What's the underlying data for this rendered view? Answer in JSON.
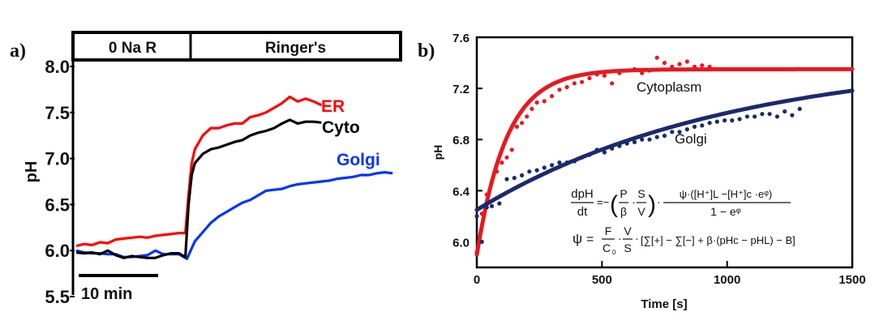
{
  "chart_data": [
    {
      "panel": "a)",
      "type": "line",
      "title": "",
      "xlabel": "",
      "ylabel": "pH",
      "ylim": [
        5.5,
        8.0
      ],
      "yticks": [
        "8.0",
        "7.5",
        "7.0",
        "6.5",
        "6.0",
        "5.5"
      ],
      "ytick_values": [
        8.0,
        7.5,
        7.0,
        6.5,
        6.0,
        5.5
      ],
      "xlim_min": [
        0,
        41
      ],
      "scale_bar_label": "10 min",
      "scale_bar_minutes": 10,
      "conditions": [
        {
          "label": "0 Na R",
          "start_min": 0,
          "end_min": 14
        },
        {
          "label": "Ringer's",
          "start_min": 14,
          "end_min": 41
        }
      ],
      "series": [
        {
          "name": "ER",
          "color": "#ff0000",
          "x": [
            0,
            1,
            2,
            3,
            4,
            5,
            6,
            7,
            8,
            9,
            10,
            11,
            12,
            13,
            13.8,
            14.2,
            14.6,
            15,
            16,
            17,
            18,
            19,
            20,
            21,
            22,
            23,
            24,
            25,
            26,
            27,
            28,
            29,
            30,
            31
          ],
          "y": [
            6.05,
            6.07,
            6.06,
            6.09,
            6.08,
            6.12,
            6.13,
            6.14,
            6.15,
            6.14,
            6.16,
            6.17,
            6.18,
            6.19,
            6.19,
            6.6,
            6.95,
            7.1,
            7.25,
            7.33,
            7.33,
            7.36,
            7.38,
            7.38,
            7.45,
            7.47,
            7.5,
            7.55,
            7.6,
            7.67,
            7.62,
            7.65,
            7.62,
            7.58
          ]
        },
        {
          "name": "Cyto",
          "color": "#000000",
          "x": [
            0,
            1,
            2,
            3,
            4,
            5,
            6,
            7,
            8,
            9,
            10,
            11,
            12,
            13,
            13.8,
            14.2,
            14.6,
            15,
            16,
            17,
            18,
            19,
            20,
            21,
            22,
            23,
            24,
            25,
            26,
            27,
            28,
            29,
            30,
            31
          ],
          "y": [
            5.98,
            5.97,
            5.98,
            5.96,
            6.0,
            5.95,
            5.92,
            5.94,
            5.93,
            5.92,
            5.92,
            5.95,
            5.97,
            5.97,
            5.93,
            6.5,
            6.82,
            6.95,
            7.05,
            7.1,
            7.12,
            7.15,
            7.18,
            7.2,
            7.25,
            7.28,
            7.3,
            7.33,
            7.38,
            7.42,
            7.38,
            7.4,
            7.4,
            7.39
          ]
        },
        {
          "name": "Golgi",
          "color": "#0033ff",
          "x": [
            0,
            1,
            2,
            3,
            4,
            5,
            6,
            7,
            8,
            9,
            10,
            11,
            12,
            13,
            14,
            15,
            16,
            17,
            18,
            19,
            20,
            21,
            22,
            23,
            24,
            25,
            26,
            27,
            28,
            29,
            30,
            31,
            32,
            33,
            34,
            35,
            36,
            37,
            38,
            39,
            40
          ],
          "y": [
            6.0,
            5.98,
            5.97,
            5.97,
            5.96,
            5.96,
            5.93,
            5.93,
            5.94,
            5.95,
            6.0,
            5.96,
            5.96,
            5.96,
            5.91,
            6.1,
            6.2,
            6.3,
            6.37,
            6.42,
            6.47,
            6.52,
            6.55,
            6.6,
            6.65,
            6.66,
            6.67,
            6.7,
            6.72,
            6.73,
            6.74,
            6.75,
            6.76,
            6.78,
            6.79,
            6.8,
            6.82,
            6.82,
            6.84,
            6.85,
            6.84
          ]
        }
      ],
      "legend": [
        "ER",
        "Cyto",
        "Golgi"
      ],
      "legend_placement": "right, inline labels"
    },
    {
      "panel": "b)",
      "type": "scatter",
      "title": "",
      "xlabel": "Time [s]",
      "ylabel": "pH",
      "xlim": [
        0,
        1500
      ],
      "ylim": [
        5.8,
        7.6
      ],
      "xticks": [
        "0",
        "500",
        "1000",
        "1500"
      ],
      "xtick_values": [
        0,
        500,
        1000,
        1500
      ],
      "yticks": [
        "7.6",
        "7.2",
        "6.8",
        "6.4",
        "6.0"
      ],
      "ytick_values": [
        7.6,
        7.2,
        6.8,
        6.4,
        6.0
      ],
      "series": [
        {
          "name": "Cytoplasm",
          "color": "#e8191e",
          "points_x": [
            0,
            20,
            40,
            60,
            80,
            100,
            120,
            140,
            160,
            180,
            200,
            220,
            240,
            270,
            300,
            330,
            360,
            390,
            420,
            450,
            480,
            510,
            540,
            570,
            600,
            630,
            660,
            690,
            720,
            750,
            780,
            810,
            840,
            870,
            900,
            930
          ],
          "points_y": [
            5.92,
            6.22,
            6.37,
            6.47,
            6.55,
            6.62,
            6.66,
            6.72,
            6.9,
            6.93,
            6.98,
            7.04,
            7.09,
            7.1,
            7.14,
            7.19,
            7.21,
            7.24,
            7.25,
            7.28,
            7.31,
            7.3,
            7.24,
            7.32,
            7.34,
            7.35,
            7.32,
            7.34,
            7.44,
            7.4,
            7.37,
            7.39,
            7.41,
            7.37,
            7.38,
            7.37
          ],
          "fit": {
            "model": "exponential",
            "y0": 5.9,
            "yinf": 7.35,
            "tau_s": 120
          }
        },
        {
          "name": "Golgi",
          "color": "#1a2a6c",
          "points_x": [
            0,
            20,
            40,
            60,
            90,
            120,
            150,
            180,
            210,
            240,
            270,
            300,
            330,
            360,
            390,
            420,
            450,
            480,
            510,
            540,
            570,
            600,
            630,
            660,
            690,
            720,
            750,
            780,
            810,
            840,
            870,
            900,
            930,
            960,
            990,
            1020,
            1050,
            1080,
            1110,
            1140,
            1170,
            1200,
            1230,
            1260,
            1290
          ],
          "points_y": [
            6.2,
            6.0,
            6.27,
            6.28,
            6.3,
            6.49,
            6.5,
            6.52,
            6.55,
            6.56,
            6.58,
            6.6,
            6.62,
            6.62,
            6.63,
            6.66,
            6.68,
            6.72,
            6.7,
            6.73,
            6.75,
            6.77,
            6.78,
            6.8,
            6.8,
            6.82,
            6.83,
            6.86,
            6.86,
            6.88,
            6.9,
            6.91,
            6.93,
            6.94,
            6.95,
            6.95,
            6.96,
            6.98,
            6.98,
            7.0,
            7.0,
            6.98,
            7.02,
            6.99,
            7.04
          ],
          "fit": {
            "model": "saturating",
            "y0": 6.25,
            "yinf": 7.45,
            "tau_s": 1000
          }
        }
      ],
      "annotations": [
        "Cytoplasm",
        "Golgi"
      ],
      "equations": {
        "eq1": "dpH/dt = −(P/β · S/V) · ψ·([H⁺]L − [H⁺]c·e^ψ) / (1 − e^ψ)",
        "eq2": "ψ = F/C0 · V/S · [Σ[+] − Σ[−] + β·(pHc − pHL) − B]"
      }
    }
  ],
  "labels": {
    "panel_a": "a)",
    "panel_b": "b)",
    "eq": {
      "dpH": "dpH",
      "dt": "dt",
      "eqsign": "=",
      "minus": "−",
      "P": "P",
      "beta": "β",
      "S": "S",
      "V": "V",
      "psi": "ψ",
      "num": "ψ·([H⁺]L −[H⁺]c ·eᵠ)",
      "den": "1 − eᵠ",
      "F": "F",
      "C0": "C",
      "sub0": "0",
      "bracket": "[∑[+] − ∑[−] + β·(pHc − pHL) − B]"
    }
  }
}
